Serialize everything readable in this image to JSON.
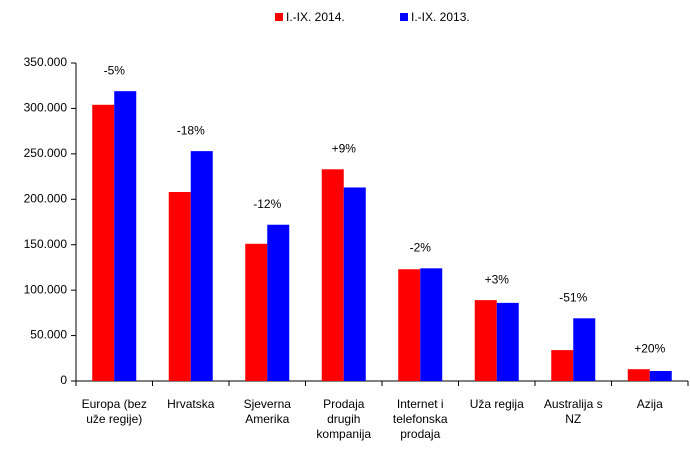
{
  "chart_data": {
    "type": "bar",
    "categories": [
      "Europa (bez uže regije)",
      "Hrvatska",
      "Sjeverna Amerika",
      "Prodaja drugih kompanija",
      "Internet i telefonska prodaja",
      "Uža regija",
      "Australija s NZ",
      "Azija"
    ],
    "series": [
      {
        "name": "I.-IX. 2014.",
        "color": "#ff0000",
        "values": [
          304000,
          208000,
          151000,
          233000,
          123000,
          89000,
          34000,
          13000
        ]
      },
      {
        "name": "I.-IX. 2013.",
        "color": "#0000ff",
        "values": [
          319000,
          253000,
          172000,
          213000,
          124000,
          86000,
          69000,
          11000
        ]
      }
    ],
    "annotations": [
      "-5%",
      "-18%",
      "-12%",
      "+9%",
      "-2%",
      "+3%",
      "-51%",
      "+20%"
    ],
    "ylim": [
      0,
      350000
    ],
    "yticks": [
      0,
      {
        "value": 50000,
        "label": "50.000"
      },
      {
        "value": 100000,
        "label": "100.000"
      },
      {
        "value": 150000,
        "label": "150.000"
      },
      {
        "value": 200000,
        "label": "200.000"
      },
      {
        "value": 250000,
        "label": "250.000"
      },
      {
        "value": 300000,
        "label": "300.000"
      },
      {
        "value": 350000,
        "label": "350.000"
      }
    ],
    "grid": false,
    "legend": "top"
  }
}
